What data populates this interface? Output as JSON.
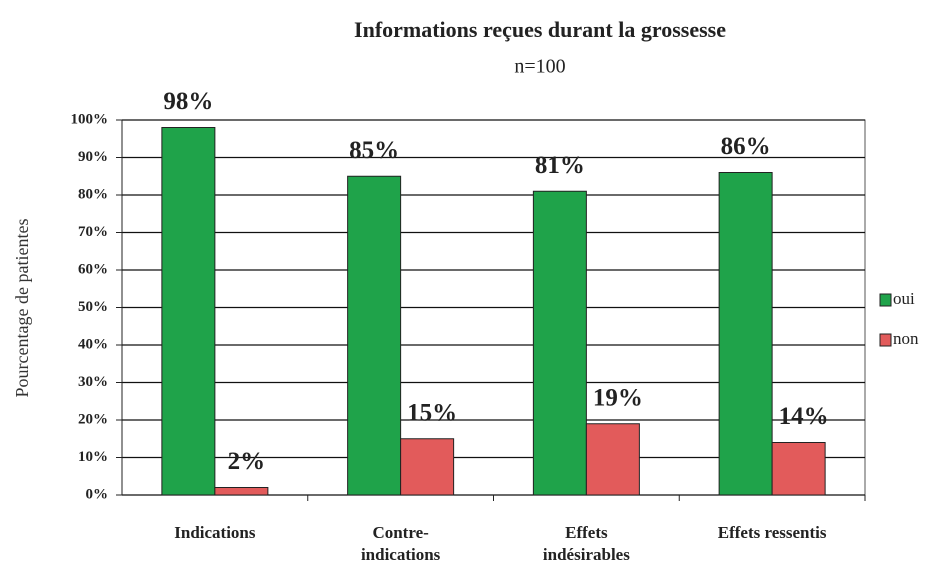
{
  "chart_data": {
    "type": "bar",
    "title": "Informations reçues durant la grossesse",
    "subtitle": "n=100",
    "y_label": "Pourcentage de patientes",
    "categories": [
      "Indications",
      "Contre-indications",
      "Effets indésirables",
      "Effets ressentis"
    ],
    "series": [
      {
        "name": "oui",
        "color": "#1fa34a",
        "values": [
          98,
          85,
          81,
          86
        ],
        "value_labels": [
          "98%",
          "85%",
          "81%",
          "86%"
        ]
      },
      {
        "name": "non",
        "color": "#e25b5b",
        "values": [
          2,
          15,
          19,
          14
        ],
        "value_labels": [
          "2%",
          "15%",
          "19%",
          "14%"
        ]
      }
    ],
    "ylim": [
      0,
      100
    ],
    "yticks": [
      {
        "value": 0,
        "label": "0%"
      },
      {
        "value": 10,
        "label": "10%"
      },
      {
        "value": 20,
        "label": "20%"
      },
      {
        "value": 30,
        "label": "30%"
      },
      {
        "value": 40,
        "label": "40%"
      },
      {
        "value": 50,
        "label": "50%"
      },
      {
        "value": 60,
        "label": "60%"
      },
      {
        "value": 70,
        "label": "70%"
      },
      {
        "value": 80,
        "label": "80%"
      },
      {
        "value": 90,
        "label": "90%"
      },
      {
        "value": 100,
        "label": "100%"
      }
    ],
    "grid": true,
    "legend": "right"
  }
}
